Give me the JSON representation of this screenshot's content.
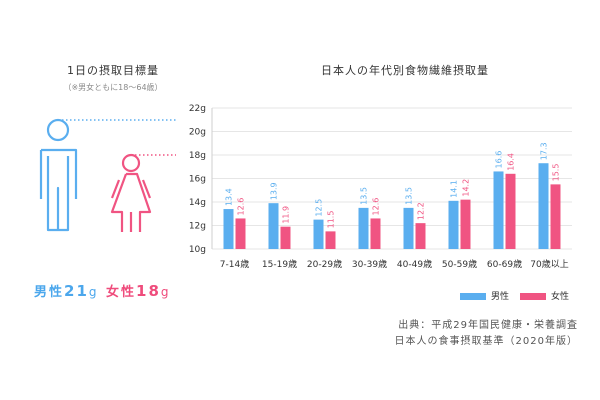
{
  "left": {
    "title": "1日の摂取目標量",
    "note": "（※男女ともに18～64歳）",
    "male": {
      "label": "男性",
      "value": "21",
      "unit": "g"
    },
    "female": {
      "label": "女性",
      "value": "18",
      "unit": "g"
    }
  },
  "colors": {
    "male": "#5aaeef",
    "female": "#f05482",
    "grid": "#e6e6e6",
    "dotted_male": "#5aaeef",
    "dotted_female": "#f05482"
  },
  "chart_data": {
    "type": "bar",
    "title": "日本人の年代別食物繊維摂取量",
    "categories": [
      "7-14歳",
      "15-19歳",
      "20-29歳",
      "30-39歳",
      "40-49歳",
      "50-59歳",
      "60-69歳",
      "70歳以上"
    ],
    "series": [
      {
        "name": "男性",
        "values": [
          13.4,
          13.9,
          12.5,
          13.5,
          13.5,
          14.1,
          16.6,
          17.3
        ]
      },
      {
        "name": "女性",
        "values": [
          12.6,
          11.9,
          11.5,
          12.6,
          12.2,
          14.2,
          16.4,
          15.5
        ]
      }
    ],
    "yticks": [
      "22g",
      "20g",
      "18g",
      "16g",
      "14g",
      "12g",
      "10g"
    ],
    "ylim": [
      10,
      22
    ],
    "grid": true,
    "legend": "bottom-right"
  },
  "source": {
    "line1": "出典：平成29年国民健康・栄養調査",
    "line2": "日本人の食事摂取基準（2020年版）"
  }
}
